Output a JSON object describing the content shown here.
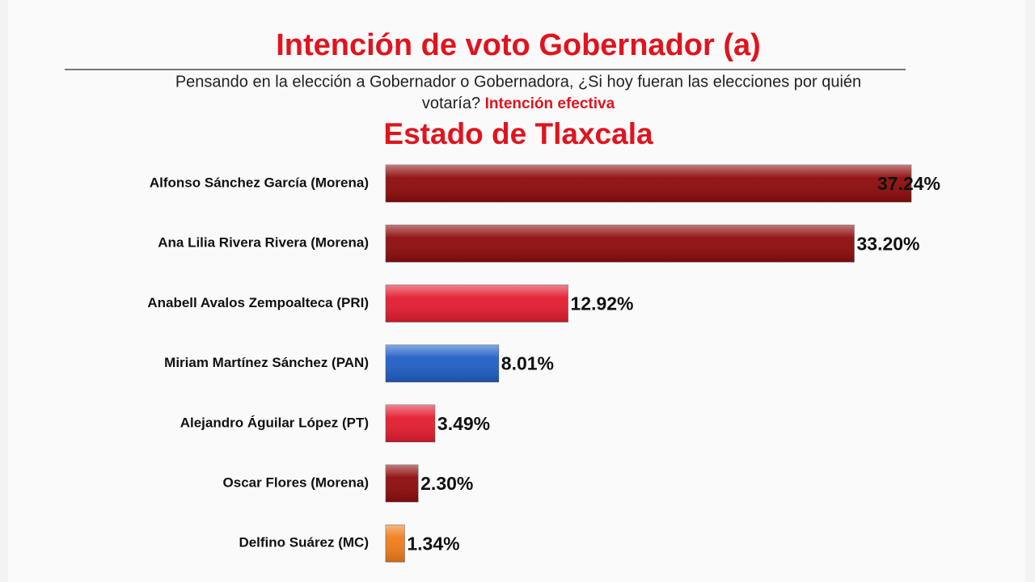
{
  "chart_data": {
    "type": "bar",
    "orientation": "horizontal",
    "title": "Intención de  voto Gobernador (a)",
    "subtitle": "Pensando en la elección a Gobernador o Gobernadora, ¿Si hoy fueran las elecciones por quién",
    "subtitle_line2": "votaría?",
    "subtitle_highlight": "Intención efectiva",
    "region": "Estado de Tlaxcala",
    "categories": [
      "Alfonso Sánchez García (Morena)",
      "Ana Lilia Rivera Rivera (Morena)",
      "Anabell Avalos Zempoalteca (PRI)",
      "Miriam Martínez Sánchez (PAN)",
      "Alejandro Águilar López (PT)",
      "Oscar Flores  (Morena)",
      "Delfino Suárez (MC)"
    ],
    "values": [
      37.24,
      33.2,
      12.92,
      8.01,
      3.49,
      2.3,
      1.34
    ],
    "value_labels": [
      "37.24%",
      "33.20%",
      "12.92%",
      "8.01%",
      "3.49%",
      "2.30%",
      "1.34%"
    ],
    "colors": [
      "#8e0b0b",
      "#8e0b0b",
      "#e41c2f",
      "#1f5fc6",
      "#e41c2f",
      "#8e0b0b",
      "#f07d1a"
    ]
  }
}
